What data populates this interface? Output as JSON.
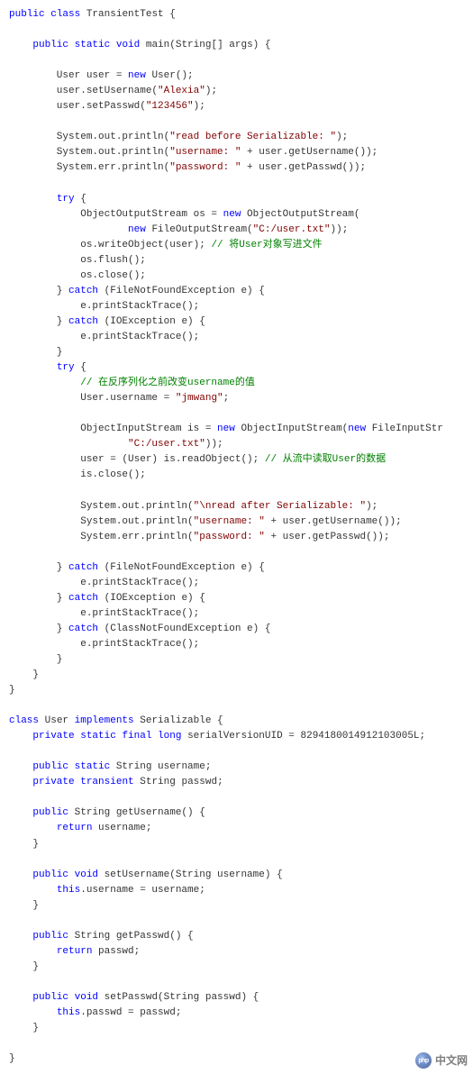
{
  "colors": {
    "keyword": "#0000ff",
    "string": "#800000",
    "comment": "#008000",
    "text": "#333333",
    "background": "#ffffff"
  },
  "code": {
    "lines": [
      [
        [
          "kw",
          "public"
        ],
        [
          "",
          " "
        ],
        [
          "kw",
          "class"
        ],
        [
          "",
          " TransientTest {"
        ]
      ],
      [
        [
          "",
          ""
        ]
      ],
      [
        [
          "",
          "    "
        ],
        [
          "kw",
          "public"
        ],
        [
          "",
          " "
        ],
        [
          "kw",
          "static"
        ],
        [
          "",
          " "
        ],
        [
          "kw",
          "void"
        ],
        [
          "",
          " main(String[] args) {"
        ]
      ],
      [
        [
          "",
          ""
        ]
      ],
      [
        [
          "",
          "        User user = "
        ],
        [
          "kw",
          "new"
        ],
        [
          "",
          " User();"
        ]
      ],
      [
        [
          "",
          "        user.setUsername("
        ],
        [
          "str",
          "\"Alexia\""
        ],
        [
          "",
          ");"
        ]
      ],
      [
        [
          "",
          "        user.setPasswd("
        ],
        [
          "str",
          "\"123456\""
        ],
        [
          "",
          ");"
        ]
      ],
      [
        [
          "",
          ""
        ]
      ],
      [
        [
          "",
          "        System.out.println("
        ],
        [
          "str",
          "\"read before Serializable: \""
        ],
        [
          "",
          ");"
        ]
      ],
      [
        [
          "",
          "        System.out.println("
        ],
        [
          "str",
          "\"username: \""
        ],
        [
          "",
          " + user.getUsername());"
        ]
      ],
      [
        [
          "",
          "        System.err.println("
        ],
        [
          "str",
          "\"password: \""
        ],
        [
          "",
          " + user.getPasswd());"
        ]
      ],
      [
        [
          "",
          ""
        ]
      ],
      [
        [
          "",
          "        "
        ],
        [
          "kw",
          "try"
        ],
        [
          "",
          " {"
        ]
      ],
      [
        [
          "",
          "            ObjectOutputStream os = "
        ],
        [
          "kw",
          "new"
        ],
        [
          "",
          " ObjectOutputStream("
        ]
      ],
      [
        [
          "",
          "                    "
        ],
        [
          "kw",
          "new"
        ],
        [
          "",
          " FileOutputStream("
        ],
        [
          "str",
          "\"C:/user.txt\""
        ],
        [
          "",
          "));"
        ]
      ],
      [
        [
          "",
          "            os.writeObject(user); "
        ],
        [
          "cmt",
          "// 将User对象写进文件"
        ]
      ],
      [
        [
          "",
          "            os.flush();"
        ]
      ],
      [
        [
          "",
          "            os.close();"
        ]
      ],
      [
        [
          "",
          "        } "
        ],
        [
          "kw",
          "catch"
        ],
        [
          "",
          " (FileNotFoundException e) {"
        ]
      ],
      [
        [
          "",
          "            e.printStackTrace();"
        ]
      ],
      [
        [
          "",
          "        } "
        ],
        [
          "kw",
          "catch"
        ],
        [
          "",
          " (IOException e) {"
        ]
      ],
      [
        [
          "",
          "            e.printStackTrace();"
        ]
      ],
      [
        [
          "",
          "        }"
        ]
      ],
      [
        [
          "",
          "        "
        ],
        [
          "kw",
          "try"
        ],
        [
          "",
          " {"
        ]
      ],
      [
        [
          "",
          "            "
        ],
        [
          "cmt",
          "// 在反序列化之前改变username的值"
        ]
      ],
      [
        [
          "",
          "            User.username = "
        ],
        [
          "str",
          "\"jmwang\""
        ],
        [
          "",
          ";"
        ]
      ],
      [
        [
          "",
          ""
        ]
      ],
      [
        [
          "",
          "            ObjectInputStream is = "
        ],
        [
          "kw",
          "new"
        ],
        [
          "",
          " ObjectInputStream("
        ],
        [
          "kw",
          "new"
        ],
        [
          "",
          " FileInputStr"
        ]
      ],
      [
        [
          "",
          "                    "
        ],
        [
          "str",
          "\"C:/user.txt\""
        ],
        [
          "",
          "));"
        ]
      ],
      [
        [
          "",
          "            user = (User) is.readObject(); "
        ],
        [
          "cmt",
          "// 从流中读取User的数据"
        ]
      ],
      [
        [
          "",
          "            is.close();"
        ]
      ],
      [
        [
          "",
          ""
        ]
      ],
      [
        [
          "",
          "            System.out.println("
        ],
        [
          "str",
          "\"\\nread after Serializable: \""
        ],
        [
          "",
          ");"
        ]
      ],
      [
        [
          "",
          "            System.out.println("
        ],
        [
          "str",
          "\"username: \""
        ],
        [
          "",
          " + user.getUsername());"
        ]
      ],
      [
        [
          "",
          "            System.err.println("
        ],
        [
          "str",
          "\"password: \""
        ],
        [
          "",
          " + user.getPasswd());"
        ]
      ],
      [
        [
          "",
          ""
        ]
      ],
      [
        [
          "",
          "        } "
        ],
        [
          "kw",
          "catch"
        ],
        [
          "",
          " (FileNotFoundException e) {"
        ]
      ],
      [
        [
          "",
          "            e.printStackTrace();"
        ]
      ],
      [
        [
          "",
          "        } "
        ],
        [
          "kw",
          "catch"
        ],
        [
          "",
          " (IOException e) {"
        ]
      ],
      [
        [
          "",
          "            e.printStackTrace();"
        ]
      ],
      [
        [
          "",
          "        } "
        ],
        [
          "kw",
          "catch"
        ],
        [
          "",
          " (ClassNotFoundException e) {"
        ]
      ],
      [
        [
          "",
          "            e.printStackTrace();"
        ]
      ],
      [
        [
          "",
          "        }"
        ]
      ],
      [
        [
          "",
          "    }"
        ]
      ],
      [
        [
          "",
          "}"
        ]
      ],
      [
        [
          "",
          ""
        ]
      ],
      [
        [
          "kw",
          "class"
        ],
        [
          "",
          " User "
        ],
        [
          "kw",
          "implements"
        ],
        [
          "",
          " Serializable {"
        ]
      ],
      [
        [
          "",
          "    "
        ],
        [
          "kw",
          "private"
        ],
        [
          "",
          " "
        ],
        [
          "kw",
          "static"
        ],
        [
          "",
          " "
        ],
        [
          "kw",
          "final"
        ],
        [
          "",
          " "
        ],
        [
          "kw",
          "long"
        ],
        [
          "",
          " serialVersionUID = 8294180014912103005L;"
        ]
      ],
      [
        [
          "",
          ""
        ]
      ],
      [
        [
          "",
          "    "
        ],
        [
          "kw",
          "public"
        ],
        [
          "",
          " "
        ],
        [
          "kw",
          "static"
        ],
        [
          "",
          " String username;"
        ]
      ],
      [
        [
          "",
          "    "
        ],
        [
          "kw",
          "private"
        ],
        [
          "",
          " "
        ],
        [
          "kw",
          "transient"
        ],
        [
          "",
          " String passwd;"
        ]
      ],
      [
        [
          "",
          ""
        ]
      ],
      [
        [
          "",
          "    "
        ],
        [
          "kw",
          "public"
        ],
        [
          "",
          " String getUsername() {"
        ]
      ],
      [
        [
          "",
          "        "
        ],
        [
          "kw",
          "return"
        ],
        [
          "",
          " username;"
        ]
      ],
      [
        [
          "",
          "    }"
        ]
      ],
      [
        [
          "",
          ""
        ]
      ],
      [
        [
          "",
          "    "
        ],
        [
          "kw",
          "public"
        ],
        [
          "",
          " "
        ],
        [
          "kw",
          "void"
        ],
        [
          "",
          " setUsername(String username) {"
        ]
      ],
      [
        [
          "",
          "        "
        ],
        [
          "kw",
          "this"
        ],
        [
          "",
          ".username = username;"
        ]
      ],
      [
        [
          "",
          "    }"
        ]
      ],
      [
        [
          "",
          ""
        ]
      ],
      [
        [
          "",
          "    "
        ],
        [
          "kw",
          "public"
        ],
        [
          "",
          " String getPasswd() {"
        ]
      ],
      [
        [
          "",
          "        "
        ],
        [
          "kw",
          "return"
        ],
        [
          "",
          " passwd;"
        ]
      ],
      [
        [
          "",
          "    }"
        ]
      ],
      [
        [
          "",
          ""
        ]
      ],
      [
        [
          "",
          "    "
        ],
        [
          "kw",
          "public"
        ],
        [
          "",
          " "
        ],
        [
          "kw",
          "void"
        ],
        [
          "",
          " setPasswd(String passwd) {"
        ]
      ],
      [
        [
          "",
          "        "
        ],
        [
          "kw",
          "this"
        ],
        [
          "",
          ".passwd = passwd;"
        ]
      ],
      [
        [
          "",
          "    }"
        ]
      ],
      [
        [
          "",
          ""
        ]
      ],
      [
        [
          "",
          "}"
        ]
      ]
    ]
  },
  "watermark": {
    "logo_text": "php",
    "site_text": "中文网"
  }
}
